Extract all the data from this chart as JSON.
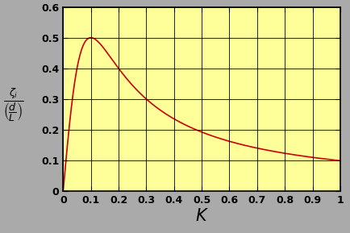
{
  "title": "",
  "xlabel": "$\\mathit{K}$",
  "ylabel_line1": "$\\zeta_i$",
  "ylabel_line2": "$\\overline{\\left(\\dfrac{d}{L}\\right)}$",
  "xlim": [
    0,
    1.0
  ],
  "ylim": [
    0,
    0.6
  ],
  "xticks": [
    0,
    0.1,
    0.2,
    0.3,
    0.4,
    0.5,
    0.6,
    0.7,
    0.8,
    0.9,
    1.0
  ],
  "yticks": [
    0,
    0.1,
    0.2,
    0.3,
    0.4,
    0.5,
    0.6
  ],
  "plot_bg_color": "#ffff99",
  "fig_bg_color": "#aaaaaa",
  "curve_color": "#cc0000",
  "curve_linewidth": 1.2,
  "grid_color": "#000000",
  "grid_linewidth": 0.6,
  "xlabel_fontsize": 15,
  "ylabel_fontsize": 12,
  "tick_fontsize": 9,
  "kappa0": 0.1,
  "C": 0.1
}
